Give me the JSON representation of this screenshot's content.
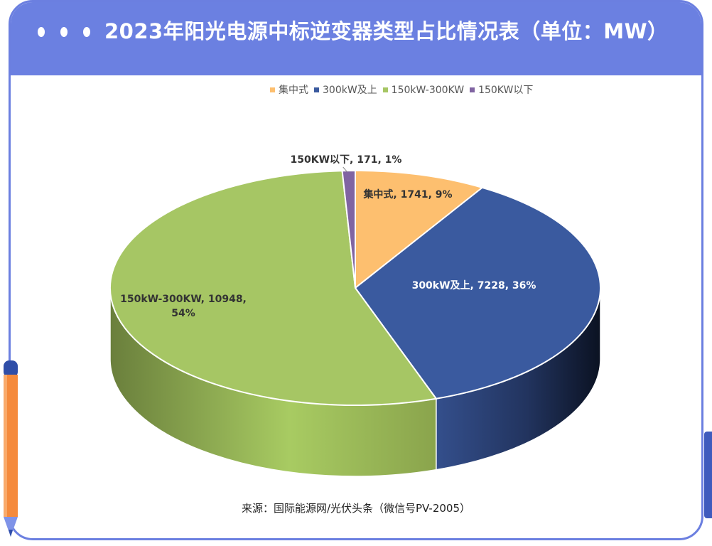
{
  "header": {
    "title": "2023年阳光电源中标逆变器类型占比情况表（单位：MW）"
  },
  "source_text": "来源：国际能源网/光伏头条（微信号PV-2005）",
  "chart_data": {
    "type": "pie",
    "title": "2023年阳光电源中标逆变器类型占比情况表（单位：MW）",
    "legend_position": "top-right",
    "slices": [
      {
        "name": "集中式",
        "value": 1741,
        "percent": "9%",
        "color": "#fdbf6f",
        "label": "集中式, 1741, 9%"
      },
      {
        "name": "300kW及上",
        "value": 7228,
        "percent": "36%",
        "color": "#3a5a9f",
        "label": "300kW及上, 7228, 36%"
      },
      {
        "name": "150kW-300KW",
        "value": 10948,
        "percent": "54%",
        "color": "#a6c664",
        "label": "150kW-300KW, 10948, 54%"
      },
      {
        "name": "150KW以下",
        "value": 171,
        "percent": "1%",
        "color": "#8064a2",
        "label": "150KW以下, 171, 1%"
      }
    ]
  }
}
